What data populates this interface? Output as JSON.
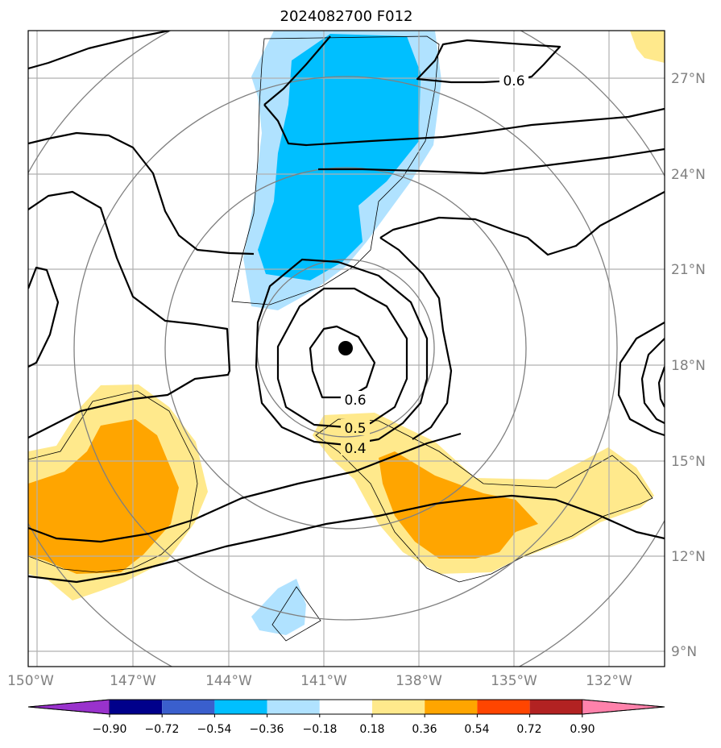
{
  "title": "2024082700 F012",
  "map": {
    "lon_labels": [
      "150°W",
      "147°W",
      "144°W",
      "141°W",
      "138°W",
      "135°W",
      "132°W"
    ],
    "lat_labels": [
      "27°N",
      "24°N",
      "21°N",
      "18°N",
      "15°N",
      "12°N",
      "9°N"
    ],
    "lon_values": [
      -150,
      -147,
      -144,
      -141,
      -138,
      -135,
      -132
    ],
    "lat_values": [
      27,
      24,
      21,
      18,
      15,
      12,
      9
    ],
    "lon_range": [
      -150.1,
      -130.1
    ],
    "lat_range": [
      8.6,
      28.5
    ],
    "storm_center": {
      "lon": -140.3,
      "lat": 18.5
    },
    "contour_labels": [
      "0.6",
      "0.6",
      "0.5",
      "0.4"
    ]
  },
  "colorbar": {
    "tick_labels": [
      "−0.90",
      "−0.72",
      "−0.54",
      "−0.36",
      "−0.18",
      "0.18",
      "0.36",
      "0.54",
      "0.72",
      "0.90"
    ],
    "levels": [
      -0.9,
      -0.72,
      -0.54,
      -0.36,
      -0.18,
      0.18,
      0.36,
      0.54,
      0.72,
      0.9
    ],
    "colors": [
      "#9932cc",
      "#00008b",
      "#3a5fcd",
      "#00bfff",
      "#b0e2ff",
      "#ffffff",
      "#ffe98c",
      "#ffa500",
      "#ff4500",
      "#b22222",
      "#ff82ab"
    ]
  },
  "palette": {
    "light_blue": "#b0e2ff",
    "blue": "#00bfff",
    "light_yellow": "#ffe98c",
    "orange": "#ffa500",
    "grid": "#b0b0b0",
    "label_gray": "#808080"
  }
}
